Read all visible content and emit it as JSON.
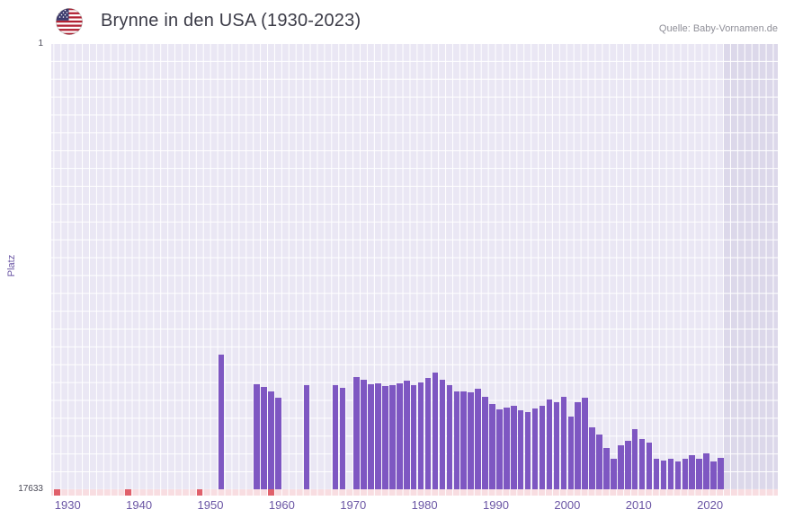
{
  "header": {
    "title": "Brynne in den USA (1930-2023)",
    "flag": "us-flag",
    "source": "Quelle: Baby-Vornamen.de"
  },
  "chart_data": {
    "type": "bar",
    "title": "Brynne in den USA (1930-2023)",
    "xlabel": "",
    "ylabel": "Platz",
    "y_axis": {
      "top_label": "1",
      "bottom_label": "17633",
      "min": 1,
      "max": 17633,
      "inverted": true
    },
    "x_range": [
      1927.7,
      2029.5
    ],
    "x_ticks": [
      1930,
      1940,
      1950,
      1960,
      1970,
      1980,
      1990,
      2000,
      2010,
      2020
    ],
    "grid": "on",
    "legend": "none",
    "no_data_band": {
      "from": 2022
    },
    "bottom_marker_years": [
      1928,
      1938,
      1948,
      1958
    ],
    "series": [
      {
        "name": "Platz",
        "points": [
          [
            1951,
            12300
          ],
          [
            1956,
            13480
          ],
          [
            1957,
            13590
          ],
          [
            1958,
            13780
          ],
          [
            1959,
            14020
          ],
          [
            1963,
            13520
          ],
          [
            1967,
            13520
          ],
          [
            1968,
            13630
          ],
          [
            1970,
            13200
          ],
          [
            1971,
            13310
          ],
          [
            1972,
            13480
          ],
          [
            1973,
            13450
          ],
          [
            1974,
            13560
          ],
          [
            1975,
            13520
          ],
          [
            1976,
            13450
          ],
          [
            1977,
            13340
          ],
          [
            1978,
            13520
          ],
          [
            1979,
            13410
          ],
          [
            1980,
            13230
          ],
          [
            1981,
            13020
          ],
          [
            1982,
            13300
          ],
          [
            1983,
            13520
          ],
          [
            1984,
            13770
          ],
          [
            1985,
            13770
          ],
          [
            1986,
            13810
          ],
          [
            1987,
            13660
          ],
          [
            1988,
            13980
          ],
          [
            1989,
            14260
          ],
          [
            1990,
            14480
          ],
          [
            1991,
            14400
          ],
          [
            1992,
            14330
          ],
          [
            1993,
            14510
          ],
          [
            1994,
            14580
          ],
          [
            1995,
            14440
          ],
          [
            1996,
            14330
          ],
          [
            1997,
            14090
          ],
          [
            1998,
            14190
          ],
          [
            1999,
            13980
          ],
          [
            2000,
            14760
          ],
          [
            2001,
            14190
          ],
          [
            2002,
            14020
          ],
          [
            2003,
            15190
          ],
          [
            2004,
            15470
          ],
          [
            2005,
            16000
          ],
          [
            2006,
            16430
          ],
          [
            2007,
            15900
          ],
          [
            2008,
            15720
          ],
          [
            2009,
            15260
          ],
          [
            2010,
            15650
          ],
          [
            2011,
            15790
          ],
          [
            2012,
            16430
          ],
          [
            2013,
            16500
          ],
          [
            2014,
            16430
          ],
          [
            2015,
            16540
          ],
          [
            2016,
            16430
          ],
          [
            2017,
            16290
          ],
          [
            2018,
            16430
          ],
          [
            2019,
            16220
          ],
          [
            2020,
            16540
          ],
          [
            2021,
            16400
          ]
        ]
      }
    ],
    "colors": {
      "bar": "#7e57c2",
      "plot_bg": "#eae7f4",
      "grid_line": "#ffffff",
      "no_data_band": "#dcd8ea",
      "strip_bg": "#f8dde1",
      "strip_marker": "#e0606a",
      "axis_text": "#6a55a4",
      "extreme_text": "#4a4a57",
      "title_text": "#3b3b47",
      "source_text": "#8f8f98"
    }
  }
}
